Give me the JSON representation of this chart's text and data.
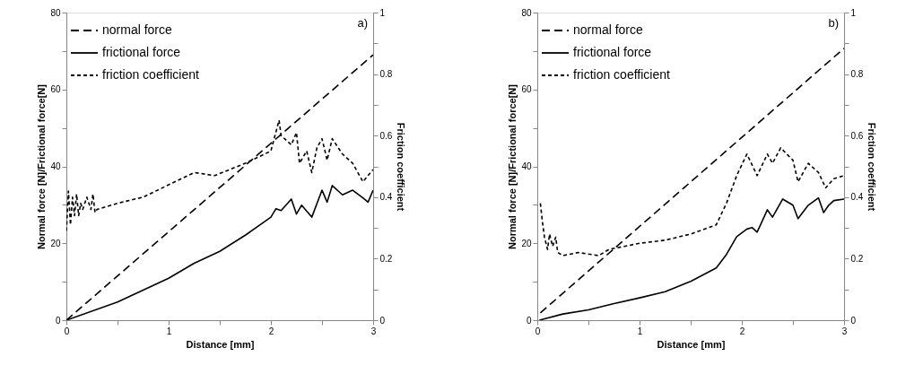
{
  "chart_data": [
    {
      "type": "line",
      "xlabel": "Distance [mm]",
      "ylabel": "Normal force [N]/Frictional force[N]",
      "y2label": "Friction coefficient",
      "xlim": [
        0,
        3
      ],
      "xticks": [
        0,
        {
          "value": 0.5,
          "label": null
        },
        1,
        {
          "value": 1.5,
          "label": null
        },
        2,
        {
          "value": 2.5,
          "label": null
        },
        3
      ],
      "ylim": [
        0,
        80
      ],
      "yticks": [
        0,
        {
          "value": 10,
          "label": null
        },
        20,
        {
          "value": 30,
          "label": null
        },
        40,
        {
          "value": 50,
          "label": null
        },
        60,
        {
          "value": 70,
          "label": null
        },
        80
      ],
      "y2lim": [
        0,
        1
      ],
      "y2ticks": [
        0,
        {
          "value": 0.1,
          "label": null
        },
        0.2,
        {
          "value": 0.3,
          "label": null
        },
        0.4,
        {
          "value": 0.5,
          "label": null
        },
        0.6,
        {
          "value": 0.7,
          "label": null
        },
        0.8,
        {
          "value": 0.9,
          "label": null
        },
        1
      ],
      "annotations": [
        "a)"
      ],
      "legend": "top left",
      "series": [
        {
          "name": "normal force",
          "color": "#000000",
          "line_style": "dashed",
          "x": [
            0,
            3
          ],
          "values": [
            0,
            69
          ]
        },
        {
          "name": "frictional force",
          "color": "#000000",
          "line_style": "solid",
          "x": [
            0,
            0.5,
            1,
            1.25,
            1.5,
            1.75,
            2,
            2.05,
            2.1,
            2.2,
            2.25,
            2.3,
            2.4,
            2.5,
            2.55,
            2.6,
            2.7,
            2.8,
            2.9,
            2.95,
            3
          ],
          "values": [
            0,
            4.7,
            10.9,
            14.8,
            17.9,
            22.1,
            26.8,
            29,
            28.5,
            31.5,
            27.6,
            29.9,
            26.8,
            33.8,
            30.7,
            35,
            32.6,
            33.8,
            31.8,
            30.7,
            33.8
          ]
        },
        {
          "name": "friction coefficient",
          "color": "#000000",
          "line_style": "dotted",
          "axis": "y2",
          "x": [
            0,
            0.02,
            0.04,
            0.06,
            0.08,
            0.1,
            0.12,
            0.14,
            0.16,
            0.2,
            0.24,
            0.26,
            0.28,
            0.3,
            0.5,
            0.75,
            1,
            1.25,
            1.45,
            1.75,
            2,
            2.08,
            2.1,
            2.2,
            2.25,
            2.28,
            2.35,
            2.4,
            2.45,
            2.5,
            2.55,
            2.6,
            2.7,
            2.8,
            2.9,
            3
          ],
          "values": [
            0.29,
            0.42,
            0.31,
            0.4,
            0.34,
            0.41,
            0.34,
            0.38,
            0.36,
            0.4,
            0.36,
            0.41,
            0.35,
            0.36,
            0.38,
            0.4,
            0.44,
            0.48,
            0.47,
            0.51,
            0.55,
            0.65,
            0.6,
            0.57,
            0.61,
            0.51,
            0.55,
            0.48,
            0.56,
            0.59,
            0.52,
            0.59,
            0.54,
            0.51,
            0.45,
            0.49
          ]
        }
      ]
    },
    {
      "type": "line",
      "xlabel": "Distance [mm]",
      "ylabel": "Normal force [N]/Frictional force[N]",
      "y2label": "Friction coefficient",
      "xlim": [
        0,
        3
      ],
      "xticks": [
        0,
        {
          "value": 0.5,
          "label": null
        },
        1,
        {
          "value": 1.5,
          "label": null
        },
        2,
        {
          "value": 2.5,
          "label": null
        },
        3
      ],
      "ylim": [
        0,
        80
      ],
      "yticks": [
        0,
        {
          "value": 10,
          "label": null
        },
        20,
        {
          "value": 30,
          "label": null
        },
        40,
        {
          "value": 50,
          "label": null
        },
        60,
        {
          "value": 70,
          "label": null
        },
        80
      ],
      "y2lim": [
        0,
        1
      ],
      "y2ticks": [
        0,
        {
          "value": 0.1,
          "label": null
        },
        0.2,
        {
          "value": 0.3,
          "label": null
        },
        0.4,
        {
          "value": 0.5,
          "label": null
        },
        0.6,
        {
          "value": 0.7,
          "label": null
        },
        0.8,
        {
          "value": 0.9,
          "label": null
        },
        1
      ],
      "annotations": [
        "b)"
      ],
      "legend": "top left",
      "series": [
        {
          "name": "normal force",
          "color": "#000000",
          "line_style": "dashed",
          "x": [
            0.03,
            3
          ],
          "values": [
            1.9,
            70.7
          ]
        },
        {
          "name": "frictional force",
          "color": "#000000",
          "line_style": "solid",
          "x": [
            0.02,
            0.25,
            0.5,
            0.75,
            1,
            1.25,
            1.5,
            1.75,
            1.85,
            1.95,
            2.05,
            2.1,
            2.15,
            2.25,
            2.3,
            2.4,
            2.5,
            2.55,
            2.65,
            2.75,
            2.8,
            2.85,
            2.9,
            3
          ],
          "values": [
            0,
            1.6,
            2.7,
            4.3,
            5.8,
            7.4,
            10.1,
            13.6,
            17.1,
            21.7,
            23.7,
            24.1,
            22.9,
            28.7,
            26.8,
            31.5,
            29.9,
            26.4,
            29.9,
            31.8,
            28,
            29.9,
            31.1,
            31.5
          ]
        },
        {
          "name": "friction coefficient",
          "color": "#000000",
          "line_style": "dotted",
          "axis": "y2",
          "x": [
            0.03,
            0.05,
            0.07,
            0.1,
            0.12,
            0.15,
            0.18,
            0.2,
            0.25,
            0.4,
            0.6,
            0.7,
            0.85,
            1,
            1.25,
            1.5,
            1.75,
            1.85,
            1.95,
            2.05,
            2.15,
            2.25,
            2.3,
            2.38,
            2.5,
            2.55,
            2.65,
            2.75,
            2.82,
            2.9,
            3
          ],
          "values": [
            0.38,
            0.32,
            0.27,
            0.23,
            0.28,
            0.24,
            0.27,
            0.22,
            0.21,
            0.22,
            0.21,
            0.23,
            0.24,
            0.25,
            0.26,
            0.28,
            0.31,
            0.38,
            0.47,
            0.54,
            0.47,
            0.54,
            0.51,
            0.56,
            0.52,
            0.45,
            0.51,
            0.48,
            0.43,
            0.46,
            0.47
          ]
        }
      ]
    }
  ]
}
